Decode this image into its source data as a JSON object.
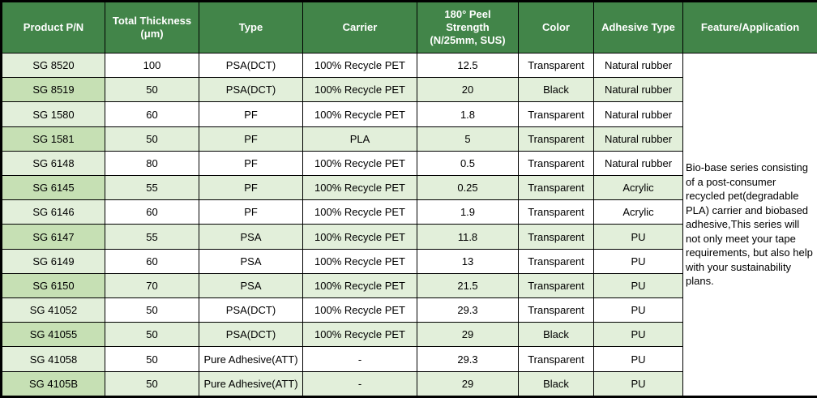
{
  "table": {
    "columns": [
      "Product P/N",
      "Total Thickness\n(μm)",
      "Type",
      "Carrier",
      "180° Peel\nStrength\n(N/25mm, SUS)",
      "Color",
      "Adhesive Type",
      "Feature/Application"
    ],
    "rows": [
      {
        "pn": "SG 8520",
        "thickness": "100",
        "type": "PSA(DCT)",
        "carrier": "100% Recycle PET",
        "peel": "12.5",
        "color": "Transparent",
        "adhesive": "Natural rubber"
      },
      {
        "pn": "SG 8519",
        "thickness": "50",
        "type": "PSA(DCT)",
        "carrier": "100% Recycle PET",
        "peel": "20",
        "color": "Black",
        "adhesive": "Natural rubber"
      },
      {
        "pn": "SG 1580",
        "thickness": "60",
        "type": "PF",
        "carrier": "100% Recycle PET",
        "peel": "1.8",
        "color": "Transparent",
        "adhesive": "Natural rubber"
      },
      {
        "pn": "SG 1581",
        "thickness": "50",
        "type": "PF",
        "carrier": "PLA",
        "peel": "5",
        "color": "Transparent",
        "adhesive": "Natural rubber"
      },
      {
        "pn": "SG 6148",
        "thickness": "80",
        "type": "PF",
        "carrier": "100% Recycle PET",
        "peel": "0.5",
        "color": "Transparent",
        "adhesive": "Natural rubber"
      },
      {
        "pn": "SG 6145",
        "thickness": "55",
        "type": "PF",
        "carrier": "100% Recycle PET",
        "peel": "0.25",
        "color": "Transparent",
        "adhesive": "Acrylic"
      },
      {
        "pn": "SG 6146",
        "thickness": "60",
        "type": "PF",
        "carrier": "100% Recycle PET",
        "peel": "1.9",
        "color": "Transparent",
        "adhesive": "Acrylic"
      },
      {
        "pn": "SG 6147",
        "thickness": "55",
        "type": "PSA",
        "carrier": "100% Recycle PET",
        "peel": "11.8",
        "color": "Transparent",
        "adhesive": "PU"
      },
      {
        "pn": "SG 6149",
        "thickness": "60",
        "type": "PSA",
        "carrier": "100% Recycle PET",
        "peel": "13",
        "color": "Transparent",
        "adhesive": "PU"
      },
      {
        "pn": "SG 6150",
        "thickness": "70",
        "type": "PSA",
        "carrier": "100% Recycle PET",
        "peel": "21.5",
        "color": "Transparent",
        "adhesive": "PU"
      },
      {
        "pn": "SG 41052",
        "thickness": "50",
        "type": "PSA(DCT)",
        "carrier": "100% Recycle PET",
        "peel": "29.3",
        "color": "Transparent",
        "adhesive": "PU"
      },
      {
        "pn": "SG 41055",
        "thickness": "50",
        "type": "PSA(DCT)",
        "carrier": "100% Recycle PET",
        "peel": "29",
        "color": "Black",
        "adhesive": "PU"
      },
      {
        "pn": "SG 41058",
        "thickness": "50",
        "type": "Pure Adhesive(ATT)",
        "carrier": "-",
        "peel": "29.3",
        "color": "Transparent",
        "adhesive": "PU"
      },
      {
        "pn": "SG 4105B",
        "thickness": "50",
        "type": "Pure Adhesive(ATT)",
        "carrier": "-",
        "peel": "29",
        "color": "Black",
        "adhesive": "PU"
      }
    ],
    "feature_text": "Bio-base series consisting of a post-consumer recycled pet(degradable PLA) carrier and  biobased adhesive,This series will not only meet your tape requirements, but also help with your sustainability plans."
  },
  "colors": {
    "header_bg": "#428549",
    "header_text": "#ffffff",
    "row_light": "#e2efda",
    "row_medium": "#c6e0b4",
    "row_white": "#ffffff",
    "grid": "#000000"
  }
}
